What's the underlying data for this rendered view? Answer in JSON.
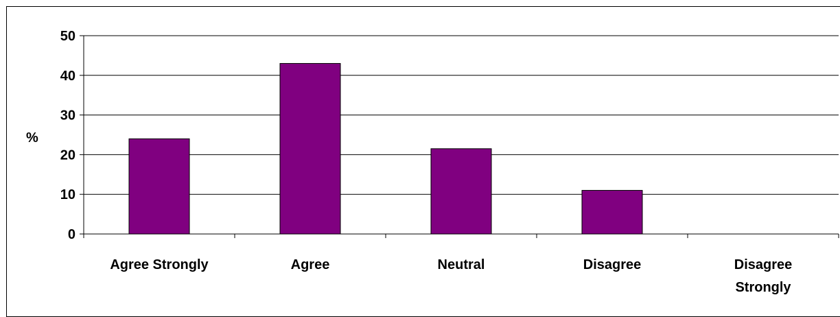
{
  "chart_data": {
    "type": "bar",
    "title": "",
    "xlabel": "",
    "ylabel": "%",
    "categories": [
      [
        "Agree Strongly"
      ],
      [
        "Agree"
      ],
      [
        "Neutral"
      ],
      [
        "Disagree"
      ],
      [
        "Disagree",
        "Strongly"
      ]
    ],
    "values": [
      24,
      43,
      21.5,
      11,
      0
    ],
    "ylim": [
      0,
      50
    ],
    "yticks": [
      "0",
      "10",
      "20",
      "30",
      "40",
      "50"
    ],
    "grid": true,
    "legend": "none",
    "bar_color": "#800080"
  }
}
